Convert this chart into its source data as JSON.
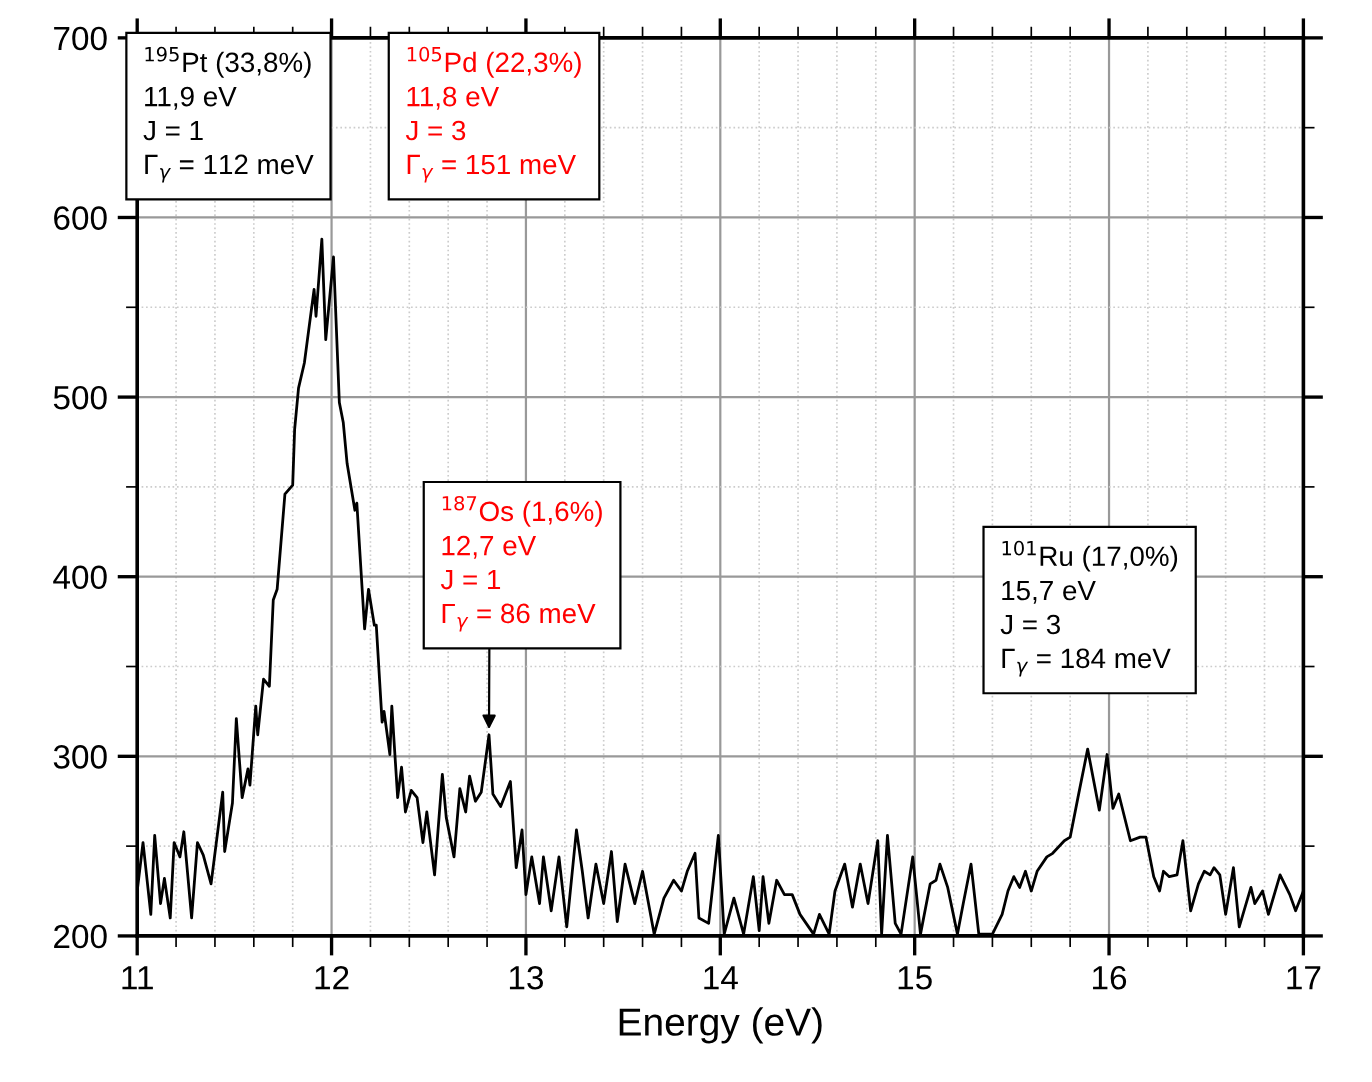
{
  "chart_data": {
    "type": "line",
    "xlabel": "Energy (eV)",
    "x": [
      11.0,
      11.03,
      11.07,
      11.09,
      11.12,
      11.14,
      11.17,
      11.19,
      11.22,
      11.24,
      11.28,
      11.31,
      11.34,
      11.38,
      11.44,
      11.45,
      11.49,
      11.51,
      11.54,
      11.57,
      11.58,
      11.61,
      11.62,
      11.65,
      11.68,
      11.7,
      11.72,
      11.76,
      11.8,
      11.81,
      11.83,
      11.86,
      11.91,
      11.92,
      11.95,
      11.97,
      12.01,
      12.04,
      12.06,
      12.08,
      12.12,
      12.13,
      12.17,
      12.19,
      12.22,
      12.23,
      12.26,
      12.27,
      12.3,
      12.31,
      12.34,
      12.36,
      12.38,
      12.41,
      12.44,
      12.47,
      12.49,
      12.53,
      12.57,
      12.59,
      12.63,
      12.66,
      12.69,
      12.71,
      12.74,
      12.77,
      12.81,
      12.83,
      12.87,
      12.92,
      12.95,
      12.98,
      13.0,
      13.03,
      13.07,
      13.09,
      13.13,
      13.17,
      13.21,
      13.26,
      13.29,
      13.32,
      13.36,
      13.4,
      13.44,
      13.47,
      13.51,
      13.56,
      13.6,
      13.66,
      13.71,
      13.76,
      13.8,
      13.83,
      13.87,
      13.89,
      13.94,
      13.99,
      14.02,
      14.07,
      14.12,
      14.17,
      14.2,
      14.22,
      14.25,
      14.29,
      14.33,
      14.37,
      14.41,
      14.48,
      14.51,
      14.56,
      14.59,
      14.64,
      14.68,
      14.72,
      14.76,
      14.81,
      14.83,
      14.86,
      14.9,
      14.93,
      14.99,
      15.03,
      15.08,
      15.11,
      15.13,
      15.17,
      15.22,
      15.25,
      15.29,
      15.33,
      15.4,
      15.45,
      15.48,
      15.51,
      15.54,
      15.57,
      15.6,
      15.63,
      15.68,
      15.71,
      15.77,
      15.8,
      15.84,
      15.89,
      15.95,
      15.99,
      16.02,
      16.05,
      16.11,
      16.16,
      16.19,
      16.23,
      16.26,
      16.28,
      16.31,
      16.35,
      16.38,
      16.42,
      16.46,
      16.49,
      16.52,
      16.54,
      16.57,
      16.6,
      16.64,
      16.67,
      16.73,
      16.75,
      16.79,
      16.82,
      16.88,
      16.93,
      16.96,
      17.0
    ],
    "series": [
      {
        "color": "#000000",
        "values": [
          225,
          252,
          212,
          256,
          218,
          232,
          210,
          252,
          244,
          258,
          210,
          252,
          245,
          229,
          280,
          247,
          274,
          321,
          277,
          293,
          284,
          328,
          312,
          343,
          339,
          387,
          393,
          446,
          451,
          482,
          505,
          519,
          560,
          545,
          588,
          532,
          578,
          497,
          486,
          463,
          437,
          441,
          371,
          393,
          373,
          373,
          319,
          325,
          301,
          328,
          277,
          294,
          269,
          281,
          277,
          252,
          269,
          234,
          290,
          266,
          244,
          282,
          269,
          289,
          275,
          280,
          312,
          279,
          272,
          286,
          238,
          259,
          223,
          244,
          218,
          244,
          214,
          244,
          205,
          259,
          236,
          210,
          240,
          218,
          247,
          208,
          240,
          218,
          236,
          201,
          221,
          231,
          225,
          236,
          246,
          210,
          207,
          256,
          201,
          221,
          201,
          233,
          203,
          233,
          207,
          231,
          223,
          223,
          212,
          201,
          212,
          201,
          225,
          240,
          216,
          240,
          218,
          253,
          201,
          256,
          207,
          201,
          244,
          201,
          229,
          231,
          240,
          227,
          201,
          218,
          240,
          201,
          201,
          212,
          225,
          233,
          227,
          236,
          225,
          236,
          244,
          246,
          253,
          255,
          277,
          304,
          270,
          301,
          271,
          279,
          253,
          255,
          255,
          233,
          225,
          236,
          233,
          234,
          253,
          214,
          229,
          236,
          234,
          238,
          234,
          212,
          238,
          205,
          227,
          218,
          225,
          212,
          234,
          223,
          214,
          225
        ]
      }
    ],
    "xlim": [
      11,
      17
    ],
    "ylim": [
      200,
      700
    ],
    "xticks": [
      11,
      12,
      13,
      14,
      15,
      16,
      17
    ],
    "yticks": [
      200,
      300,
      400,
      500,
      600,
      700
    ],
    "grid": true,
    "marker": "none",
    "line_style": "solid",
    "annotations": [
      {
        "text": "$^{195}$Pt (33,8%)\n11,9 eV\nJ = 1\nΓ$_{γ}$ = 112 meV"
      },
      {
        "text": "$^{105}$Pd (22,3%)\n11,8 eV\nJ = 3\nΓ$_{γ}$ = 151 meV"
      },
      {
        "text": "$^{187}$Os (1,6%)\n12,7 eV\nJ = 1\nΓ$_{γ}$ = 86 meV",
        "x": 12.81,
        "y": 312
      },
      {
        "text": "$^{101}$Ru (17,0%)\n15,7 eV\nJ = 3\nΓ$_{γ}$ = 184 meV"
      }
    ]
  }
}
